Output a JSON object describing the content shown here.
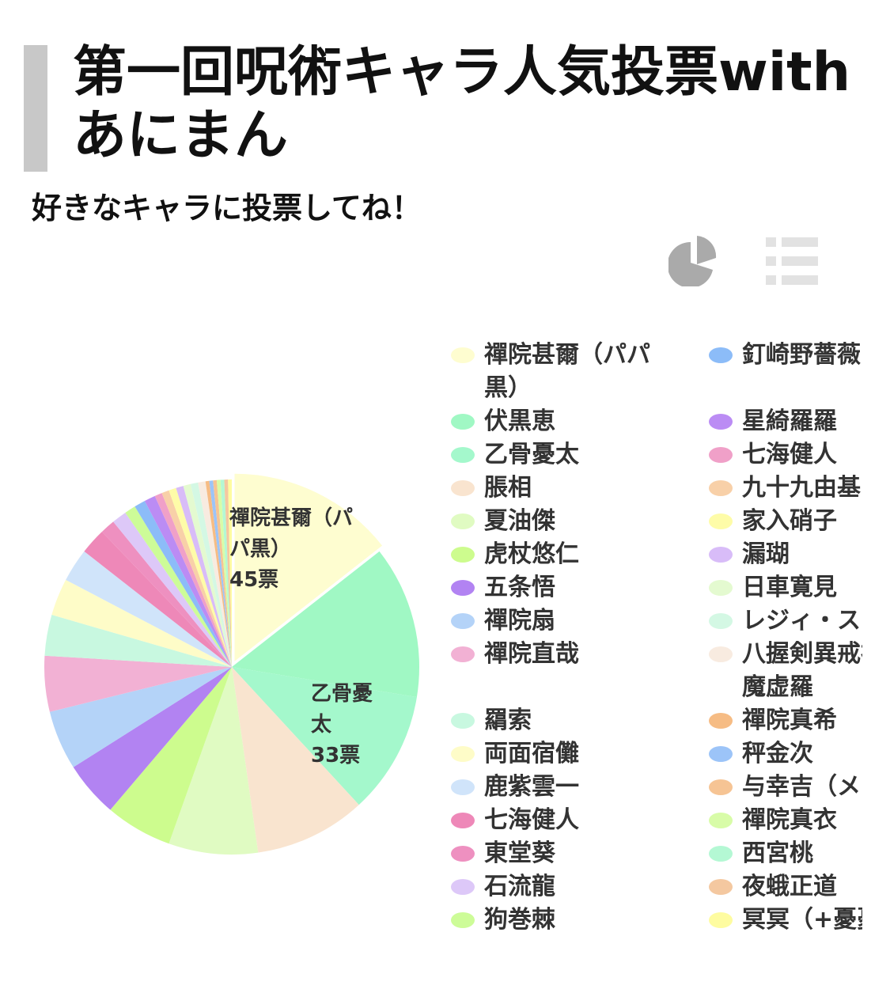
{
  "header": {
    "title": "第一回呪術キャラ人気投票withあにまん",
    "subtitle": "好きなキャラに投票してね！"
  },
  "view_icons": [
    "pie-chart-icon",
    "list-icon"
  ],
  "chart_data": {
    "type": "pie",
    "unit": "票",
    "labels": [
      {
        "name": "禪院甚爾（パパ黒）",
        "value": 45,
        "text": "45票"
      },
      {
        "name": "乙骨憂太",
        "value": 33,
        "text": "33票"
      }
    ],
    "slices": [
      {
        "name": "禪院甚爾（パパ黒）",
        "value": 45,
        "color": "#fefdd0"
      },
      {
        "name": "伏黒恵",
        "value": 41,
        "color": "#a0f8c4"
      },
      {
        "name": "乙骨憂太",
        "value": 33,
        "color": "#a4f8cc"
      },
      {
        "name": "脹相",
        "value": 30,
        "color": "#f9e4cf"
      },
      {
        "name": "夏油傑",
        "value": 24,
        "color": "#e0fbc2"
      },
      {
        "name": "虎杖悠仁",
        "value": 18,
        "color": "#cdfc8e"
      },
      {
        "name": "五条悟",
        "value": 15,
        "color": "#b283f2"
      },
      {
        "name": "禪院扇",
        "value": 16,
        "color": "#b4d3f8"
      },
      {
        "name": "禪院直哉",
        "value": 15,
        "color": "#f2b1d4"
      },
      {
        "name": "羂索",
        "value": 11,
        "color": "#c8f8e0"
      },
      {
        "name": "両面宿儺",
        "value": 10,
        "color": "#fefcc8"
      },
      {
        "name": "鹿紫雲一",
        "value": 9,
        "color": "#d0e4fa"
      },
      {
        "name": "七海健人",
        "value": 7,
        "color": "#ee88b8"
      },
      {
        "name": "東堂葵",
        "value": 4,
        "color": "#ee90c0"
      },
      {
        "name": "石流龍",
        "value": 4,
        "color": "#ddc8f8"
      },
      {
        "name": "狗巻棘",
        "value": 3,
        "color": "#cdfc98"
      },
      {
        "name": "釘崎野薔薇",
        "value": 3,
        "color": "#8cbcf8"
      },
      {
        "name": "星綺羅羅",
        "value": 3,
        "color": "#bb8cf4"
      },
      {
        "name": "七海健人",
        "value": 2,
        "color": "#f0a0c8"
      },
      {
        "name": "九十九由基",
        "value": 2,
        "color": "#f8d0a8"
      },
      {
        "name": "家入硝子",
        "value": 2,
        "color": "#fefca8"
      },
      {
        "name": "漏瑚",
        "value": 2,
        "color": "#d8bcf8"
      },
      {
        "name": "日車寛見",
        "value": 2,
        "color": "#e4fad0"
      },
      {
        "name": "レジィ・スター",
        "value": 2,
        "color": "#d4f8e4"
      },
      {
        "name": "八握剣異戒神将魔虚羅",
        "value": 2,
        "color": "#f8ebe0"
      },
      {
        "name": "禪院真希",
        "value": 1,
        "color": "#f6bc84"
      },
      {
        "name": "秤金次",
        "value": 1,
        "color": "#9cc4f8"
      },
      {
        "name": "与幸吉（メカ丸）",
        "value": 1,
        "color": "#f6c494"
      },
      {
        "name": "禪院真衣",
        "value": 1,
        "color": "#d8fca8"
      },
      {
        "name": "西宮桃",
        "value": 1,
        "color": "#b4f8d4"
      },
      {
        "name": "夜蛾正道",
        "value": 1,
        "color": "#f4c8a0"
      },
      {
        "name": "冥冥（+憂憂）",
        "value": 1,
        "color": "#fefca0"
      }
    ],
    "legend_position": "right"
  }
}
